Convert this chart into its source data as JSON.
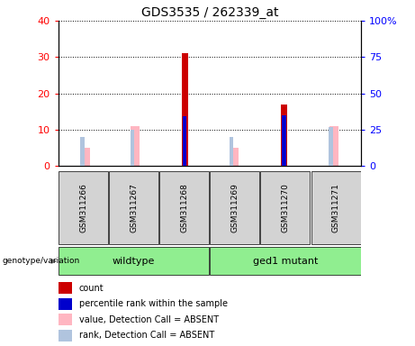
{
  "title": "GDS3535 / 262339_at",
  "samples": [
    "GSM311266",
    "GSM311267",
    "GSM311268",
    "GSM311269",
    "GSM311270",
    "GSM311271"
  ],
  "groups": [
    {
      "name": "wildtype",
      "color": "#90EE90",
      "span": [
        0,
        3
      ]
    },
    {
      "name": "ged1 mutant",
      "color": "#90EE90",
      "span": [
        3,
        6
      ]
    }
  ],
  "count_values": [
    0,
    0,
    31,
    0,
    17,
    0
  ],
  "percentile_rank_values": [
    0,
    0,
    34,
    0,
    35,
    0
  ],
  "absent_value_values": [
    5,
    11,
    0,
    5,
    0,
    11
  ],
  "absent_rank_values": [
    20,
    25,
    0,
    20,
    0,
    27
  ],
  "count_color": "#CC0000",
  "percentile_color": "#0000CC",
  "absent_value_color": "#FFB6C1",
  "absent_rank_color": "#B0C4DE",
  "ylim_left": [
    0,
    40
  ],
  "ylim_right": [
    0,
    100
  ],
  "yticks_left": [
    0,
    10,
    20,
    30,
    40
  ],
  "ytick_labels_left": [
    "0",
    "10",
    "20",
    "30",
    "40"
  ],
  "yticks_right": [
    0,
    25,
    50,
    75,
    100
  ],
  "ytick_labels_right": [
    "0",
    "25",
    "50",
    "75",
    "100%"
  ],
  "bg_color": "#D3D3D3",
  "plot_bg": "#FFFFFF",
  "legend_items": [
    {
      "label": "count",
      "color": "#CC0000"
    },
    {
      "label": "percentile rank within the sample",
      "color": "#0000CC"
    },
    {
      "label": "value, Detection Call = ABSENT",
      "color": "#FFB6C1"
    },
    {
      "label": "rank, Detection Call = ABSENT",
      "color": "#B0C4DE"
    }
  ]
}
